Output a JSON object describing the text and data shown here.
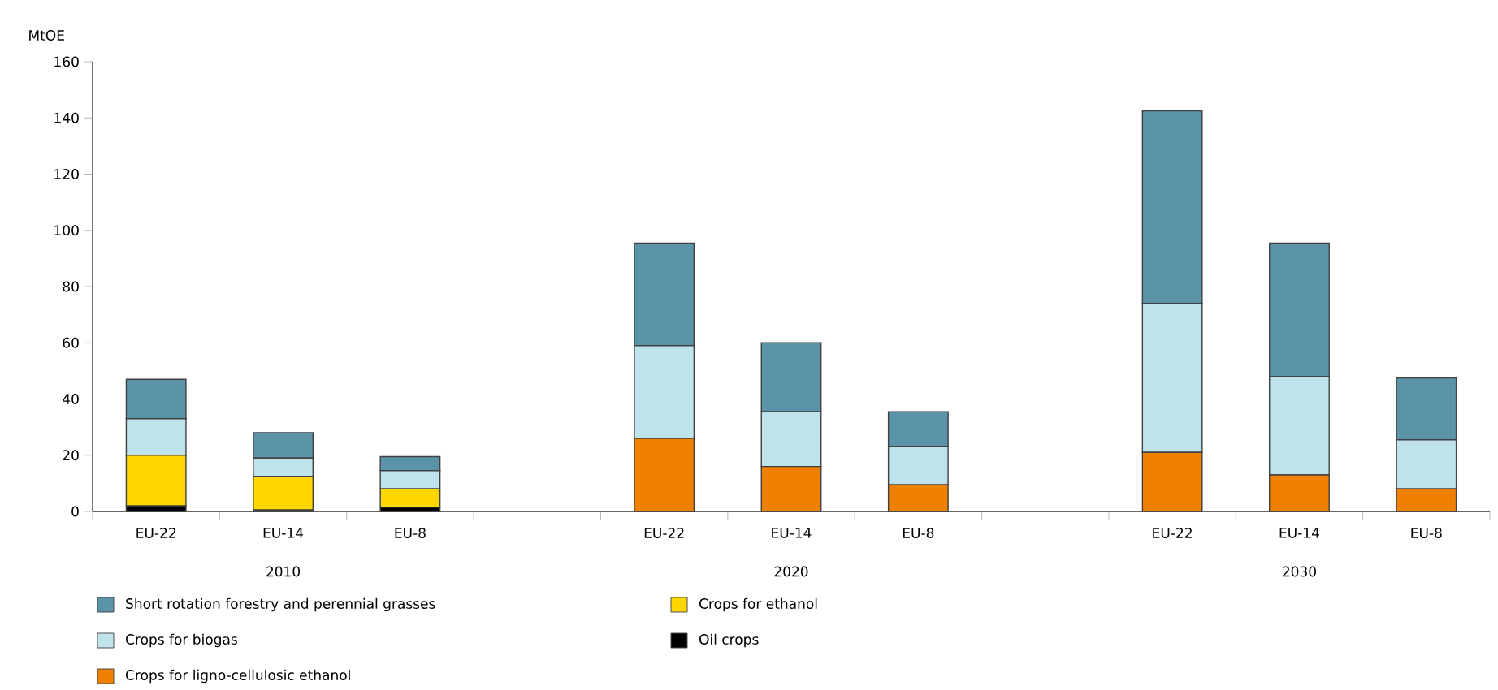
{
  "chart_data": {
    "type": "bar",
    "stacked": true,
    "ylabel": "MtOE",
    "ylim": [
      0,
      160
    ],
    "yticks": [
      0,
      20,
      40,
      60,
      80,
      100,
      120,
      140,
      160
    ],
    "grid": false,
    "legend": "bottom",
    "categories": [
      "EU-22",
      "EU-14",
      "EU-8",
      null,
      "EU-22",
      "EU-14",
      "EU-8",
      null,
      "EU-22",
      "EU-14",
      "EU-8"
    ],
    "series": [
      {
        "name": "Oil crops",
        "color": "#000000",
        "values": [
          2,
          0.5,
          1.5,
          null,
          0,
          0,
          0,
          null,
          0,
          0,
          0
        ]
      },
      {
        "name": "Crops for ligno-cellulosic ethanol",
        "color": "#f08000",
        "values": [
          0,
          0,
          0,
          null,
          26,
          16,
          9.5,
          null,
          21,
          13,
          8
        ]
      },
      {
        "name": "Crops for ethanol",
        "color": "#ffd700",
        "values": [
          18,
          12,
          6.5,
          null,
          0,
          0,
          0,
          null,
          0,
          0,
          0
        ]
      },
      {
        "name": "Crops for biogas",
        "color": "#bfe3ea",
        "values": [
          13,
          6.5,
          6.5,
          null,
          33,
          19.5,
          13.5,
          null,
          53,
          35,
          17.5
        ]
      },
      {
        "name": "Short rotation forestry and perennial grasses",
        "color": "#5b93a9",
        "values": [
          14,
          9,
          5,
          null,
          36.5,
          24.5,
          12.5,
          null,
          68.5,
          47.5,
          22
        ]
      }
    ],
    "annotations": [
      "2010",
      "2020",
      "2030"
    ]
  }
}
